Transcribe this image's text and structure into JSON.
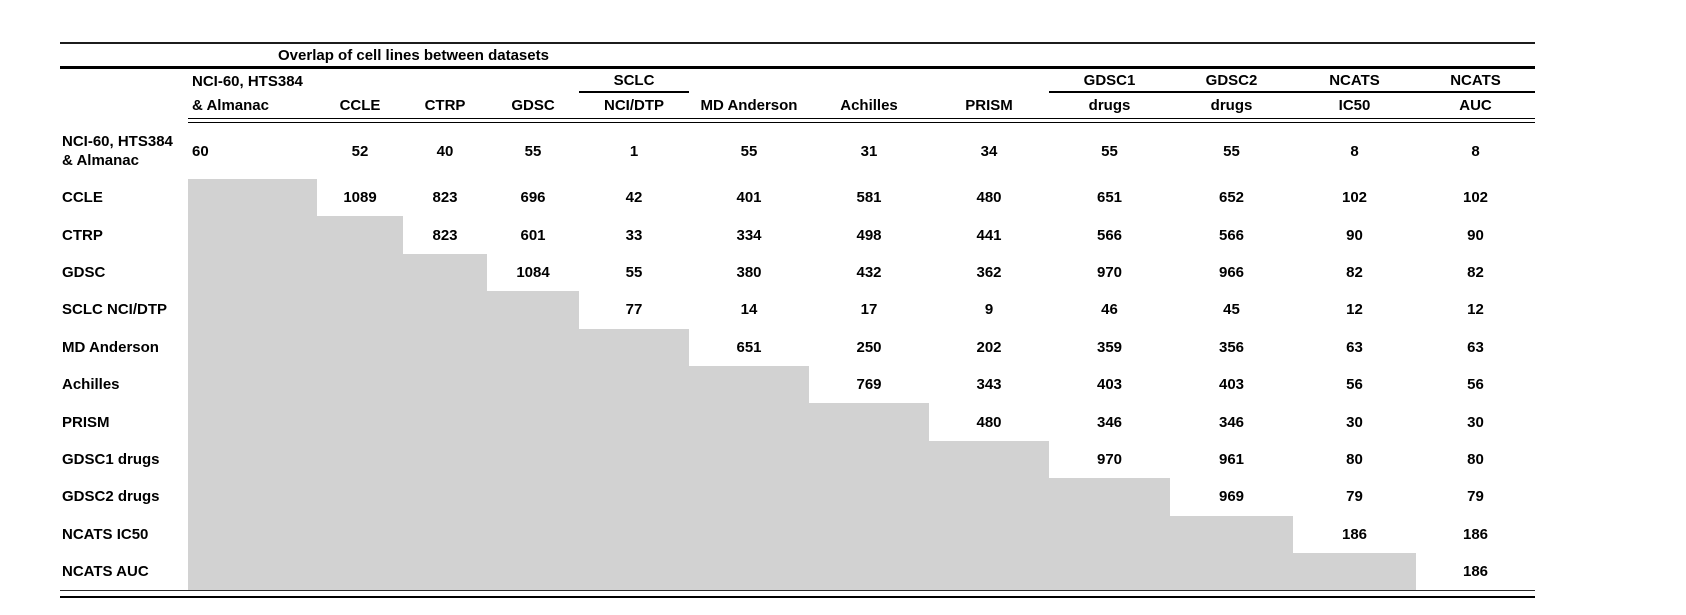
{
  "table": {
    "title": "Overlap of cell lines between datasets",
    "shade_color": "#d2d2d2",
    "text_color": "#000000",
    "background_color": "#ffffff",
    "col_headers": [
      {
        "top": "NCI-60, HTS384",
        "bottom": "& Almanac",
        "underline": false,
        "align": "left"
      },
      {
        "top": "",
        "bottom": "CCLE",
        "underline": false,
        "align": "center"
      },
      {
        "top": "",
        "bottom": "CTRP",
        "underline": false,
        "align": "center"
      },
      {
        "top": "",
        "bottom": "GDSC",
        "underline": false,
        "align": "center"
      },
      {
        "top": "SCLC",
        "bottom": "NCI/DTP",
        "underline": true,
        "align": "center"
      },
      {
        "top": "",
        "bottom": "MD Anderson",
        "underline": false,
        "align": "center"
      },
      {
        "top": "",
        "bottom": "Achilles",
        "underline": false,
        "align": "center"
      },
      {
        "top": "",
        "bottom": "PRISM",
        "underline": false,
        "align": "center"
      },
      {
        "top": "GDSC1",
        "bottom": "drugs",
        "underline": true,
        "align": "center"
      },
      {
        "top": "GDSC2",
        "bottom": "drugs",
        "underline": true,
        "align": "center"
      },
      {
        "top": "NCATS",
        "bottom": "IC50",
        "underline": true,
        "align": "center"
      },
      {
        "top": "NCATS",
        "bottom": "AUC",
        "underline": true,
        "align": "center"
      }
    ],
    "rows": [
      {
        "label_lines": [
          "NCI-60, HTS384",
          "& Almanac"
        ],
        "values": [
          "60",
          "52",
          "40",
          "55",
          "1",
          "55",
          "31",
          "34",
          "55",
          "55",
          "8",
          "8"
        ]
      },
      {
        "label_lines": [
          "CCLE"
        ],
        "values": [
          "",
          "1089",
          "823",
          "696",
          "42",
          "401",
          "581",
          "480",
          "651",
          "652",
          "102",
          "102"
        ]
      },
      {
        "label_lines": [
          "CTRP"
        ],
        "values": [
          "",
          "",
          "823",
          "601",
          "33",
          "334",
          "498",
          "441",
          "566",
          "566",
          "90",
          "90"
        ]
      },
      {
        "label_lines": [
          "GDSC"
        ],
        "values": [
          "",
          "",
          "",
          "1084",
          "55",
          "380",
          "432",
          "362",
          "970",
          "966",
          "82",
          "82"
        ]
      },
      {
        "label_lines": [
          "SCLC NCI/DTP"
        ],
        "values": [
          "",
          "",
          "",
          "",
          "77",
          "14",
          "17",
          "9",
          "46",
          "45",
          "12",
          "12"
        ]
      },
      {
        "label_lines": [
          "MD Anderson"
        ],
        "values": [
          "",
          "",
          "",
          "",
          "",
          "651",
          "250",
          "202",
          "359",
          "356",
          "63",
          "63"
        ]
      },
      {
        "label_lines": [
          "Achilles"
        ],
        "values": [
          "",
          "",
          "",
          "",
          "",
          "",
          "769",
          "343",
          "403",
          "403",
          "56",
          "56"
        ]
      },
      {
        "label_lines": [
          "PRISM"
        ],
        "values": [
          "",
          "",
          "",
          "",
          "",
          "",
          "",
          "480",
          "346",
          "346",
          "30",
          "30"
        ]
      },
      {
        "label_lines": [
          "GDSC1 drugs"
        ],
        "values": [
          "",
          "",
          "",
          "",
          "",
          "",
          "",
          "",
          "970",
          "961",
          "80",
          "80"
        ]
      },
      {
        "label_lines": [
          "GDSC2 drugs"
        ],
        "values": [
          "",
          "",
          "",
          "",
          "",
          "",
          "",
          "",
          "",
          "969",
          "79",
          "79"
        ]
      },
      {
        "label_lines": [
          "NCATS IC50"
        ],
        "values": [
          "",
          "",
          "",
          "",
          "",
          "",
          "",
          "",
          "",
          "",
          "186",
          "186"
        ]
      },
      {
        "label_lines": [
          "NCATS AUC"
        ],
        "values": [
          "",
          "",
          "",
          "",
          "",
          "",
          "",
          "",
          "",
          "",
          "",
          "186"
        ]
      }
    ]
  },
  "chart_data": {
    "type": "table",
    "title": "Overlap of cell lines between datasets",
    "row_labels": [
      "NCI-60, HTS384 & Almanac",
      "CCLE",
      "CTRP",
      "GDSC",
      "SCLC NCI/DTP",
      "MD Anderson",
      "Achilles",
      "PRISM",
      "GDSC1 drugs",
      "GDSC2 drugs",
      "NCATS IC50",
      "NCATS AUC"
    ],
    "column_labels": [
      "NCI-60, HTS384 & Almanac",
      "CCLE",
      "CTRP",
      "GDSC",
      "SCLC NCI/DTP",
      "MD Anderson",
      "Achilles",
      "PRISM",
      "GDSC1 drugs",
      "GDSC2 drugs",
      "NCATS IC50",
      "NCATS AUC"
    ],
    "matrix": [
      [
        60,
        52,
        40,
        55,
        1,
        55,
        31,
        34,
        55,
        55,
        8,
        8
      ],
      [
        null,
        1089,
        823,
        696,
        42,
        401,
        581,
        480,
        651,
        652,
        102,
        102
      ],
      [
        null,
        null,
        823,
        601,
        33,
        334,
        498,
        441,
        566,
        566,
        90,
        90
      ],
      [
        null,
        null,
        null,
        1084,
        55,
        380,
        432,
        362,
        970,
        966,
        82,
        82
      ],
      [
        null,
        null,
        null,
        null,
        77,
        14,
        17,
        9,
        46,
        45,
        12,
        12
      ],
      [
        null,
        null,
        null,
        null,
        null,
        651,
        250,
        202,
        359,
        356,
        63,
        63
      ],
      [
        null,
        null,
        null,
        null,
        null,
        null,
        769,
        343,
        403,
        403,
        56,
        56
      ],
      [
        null,
        null,
        null,
        null,
        null,
        null,
        null,
        480,
        346,
        346,
        30,
        30
      ],
      [
        null,
        null,
        null,
        null,
        null,
        null,
        null,
        null,
        970,
        961,
        80,
        80
      ],
      [
        null,
        null,
        null,
        null,
        null,
        null,
        null,
        null,
        null,
        969,
        79,
        79
      ],
      [
        null,
        null,
        null,
        null,
        null,
        null,
        null,
        null,
        null,
        null,
        186,
        186
      ],
      [
        null,
        null,
        null,
        null,
        null,
        null,
        null,
        null,
        null,
        null,
        null,
        186
      ]
    ],
    "layout_hints": {
      "lower_triangle_shaded": true,
      "shade_color": "#d2d2d2",
      "upper_triangular_matrix": true
    }
  }
}
